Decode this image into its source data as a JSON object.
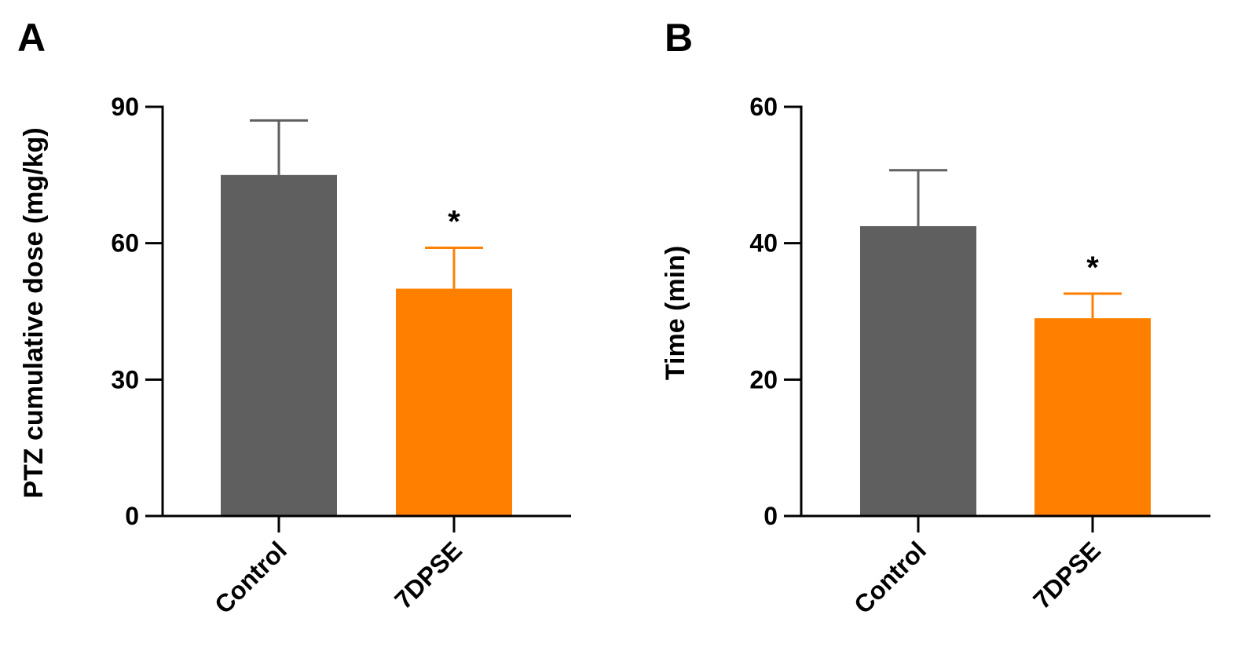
{
  "chart_data": [
    {
      "type": "bar",
      "panel_label": "A",
      "title": "",
      "xlabel": "",
      "ylabel": "PTZ cumulative dose (mg/kg)",
      "ylim": [
        0,
        90
      ],
      "yticks": [
        0,
        30,
        60,
        90
      ],
      "categories": [
        "Control",
        "7DPSE"
      ],
      "values": [
        75,
        50
      ],
      "errors": [
        12,
        9
      ],
      "colors": [
        "#5f5f5f",
        "#ff8000"
      ],
      "significance": [
        "",
        "*"
      ],
      "grid": false,
      "legend": "none"
    },
    {
      "type": "bar",
      "panel_label": "B",
      "title": "",
      "xlabel": "",
      "ylabel": "Time (min)",
      "ylim": [
        0,
        60
      ],
      "yticks": [
        0,
        20,
        40,
        60
      ],
      "categories": [
        "Control",
        "7DPSE"
      ],
      "values": [
        42.5,
        29
      ],
      "errors": [
        8.2,
        3.6
      ],
      "colors": [
        "#5f5f5f",
        "#ff8000"
      ],
      "significance": [
        "",
        "*"
      ],
      "grid": false,
      "legend": "none"
    }
  ]
}
